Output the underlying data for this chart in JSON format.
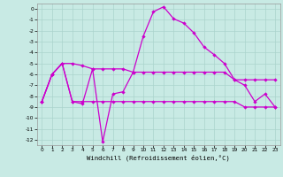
{
  "xlabel": "Windchill (Refroidissement éolien,°C)",
  "background_color": "#c8eae4",
  "grid_color": "#aad4cc",
  "line_color": "#cc00cc",
  "xlim": [
    -0.5,
    23.5
  ],
  "ylim": [
    -12.5,
    0.5
  ],
  "xtick_labels": [
    "0",
    "1",
    "2",
    "3",
    "4",
    "5",
    "6",
    "7",
    "8",
    "9",
    "10",
    "11",
    "12",
    "13",
    "14",
    "15",
    "16",
    "17",
    "18",
    "19",
    "20",
    "21",
    "22",
    "23"
  ],
  "ytick_labels": [
    "0",
    "-1",
    "-2",
    "-3",
    "-4",
    "-5",
    "-6",
    "-7",
    "-8",
    "-9",
    "-10",
    "-11",
    "-12"
  ],
  "s1_x": [
    0,
    1,
    2,
    3,
    4,
    5,
    6,
    7,
    8,
    9,
    10,
    11,
    12,
    13,
    14,
    15,
    16,
    17,
    18,
    19,
    20,
    21,
    22,
    23
  ],
  "s1_y": [
    -8.5,
    -6.0,
    -5.0,
    -8.5,
    -8.7,
    -5.5,
    -12.2,
    -7.8,
    -7.6,
    -5.8,
    -2.5,
    -0.25,
    0.2,
    -0.9,
    -1.3,
    -2.2,
    -3.5,
    -4.2,
    -5.0,
    -6.5,
    -7.0,
    -8.5,
    -7.8,
    -9.0
  ],
  "s2_x": [
    0,
    1,
    2,
    3,
    4,
    5,
    6,
    7,
    8,
    9,
    10,
    11,
    12,
    13,
    14,
    15,
    16,
    17,
    18,
    19,
    20,
    21,
    22,
    23
  ],
  "s2_y": [
    -8.5,
    -6.0,
    -5.0,
    -8.5,
    -8.5,
    -8.5,
    -8.5,
    -8.5,
    -8.5,
    -8.5,
    -8.5,
    -8.5,
    -8.5,
    -8.5,
    -8.5,
    -8.5,
    -8.5,
    -8.5,
    -8.5,
    -8.5,
    -9.0,
    -9.0,
    -9.0,
    -9.0
  ],
  "s3_x": [
    0,
    1,
    2,
    3,
    4,
    5,
    6,
    7,
    8,
    9,
    10,
    11,
    12,
    13,
    14,
    15,
    16,
    17,
    18,
    19,
    20,
    21,
    22,
    23
  ],
  "s3_y": [
    -8.5,
    -6.0,
    -5.0,
    -5.0,
    -5.2,
    -5.5,
    -5.5,
    -5.5,
    -5.5,
    -5.8,
    -5.8,
    -5.8,
    -5.8,
    -5.8,
    -5.8,
    -5.8,
    -5.8,
    -5.8,
    -5.8,
    -6.5,
    -6.5,
    -6.5,
    -6.5,
    -6.5
  ]
}
